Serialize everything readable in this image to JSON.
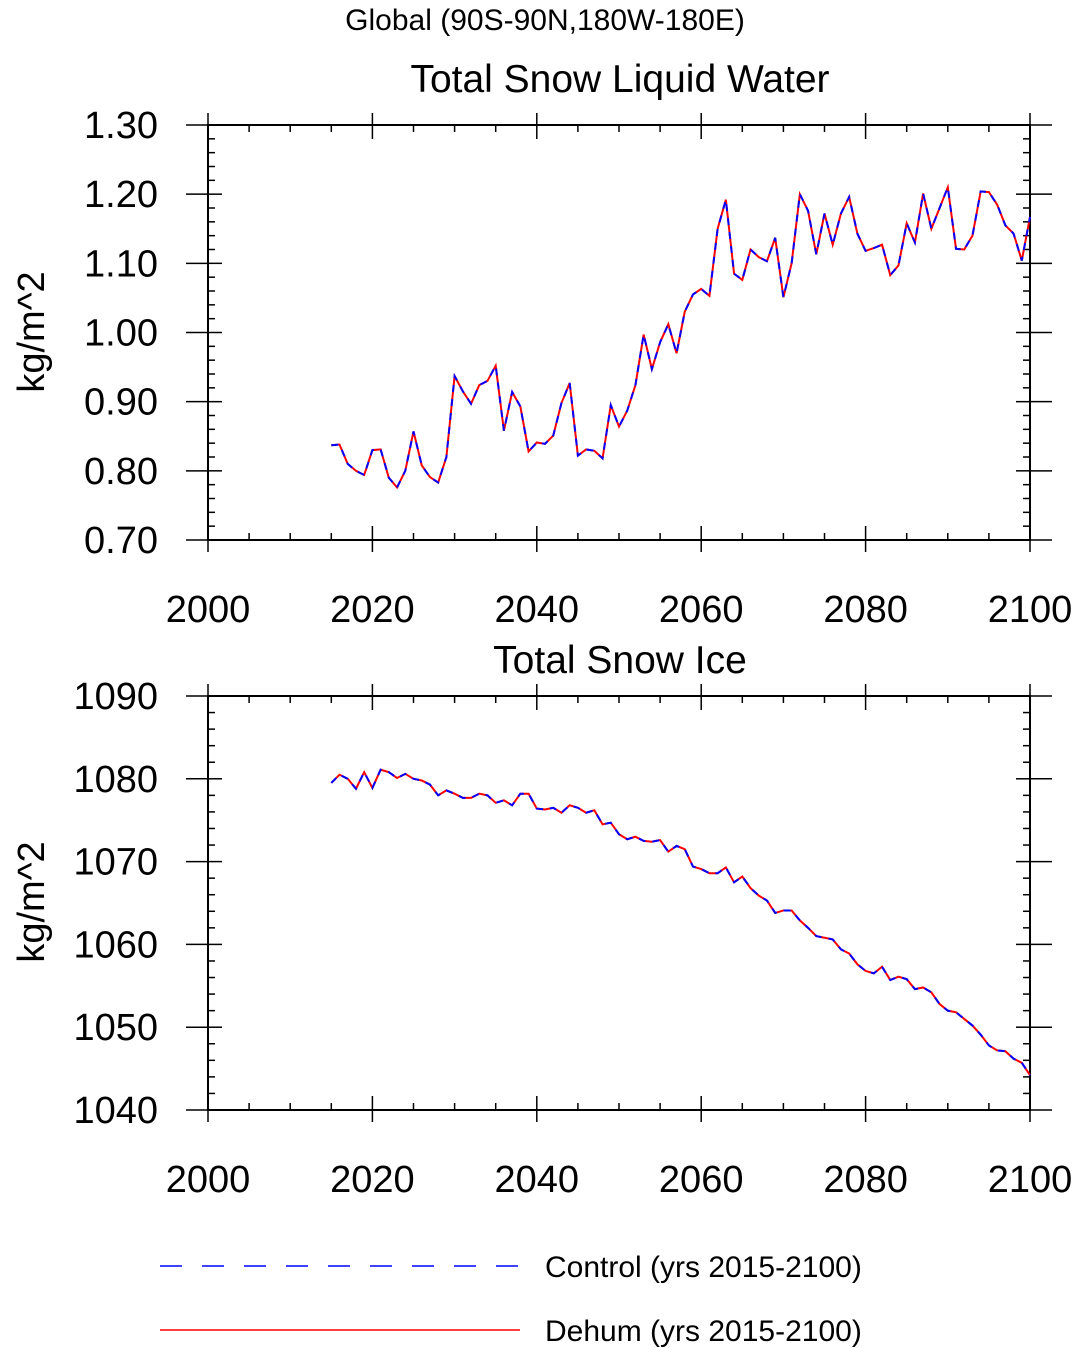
{
  "figure": {
    "supertitle": "Global (90S-90N,180W-180E)"
  },
  "legend": {
    "placement": "bottom",
    "entries": [
      {
        "label": "Control (yrs 2015-2100)",
        "color": "#0000ff",
        "dash": "dashed"
      },
      {
        "label": "Dehum (yrs 2015-2100)",
        "color": "#ff0000",
        "dash": "solid"
      }
    ]
  },
  "chart_data": [
    {
      "type": "line",
      "title": "Total Snow Liquid Water",
      "xlabel": "",
      "ylabel": "kg/m^2",
      "xlim": [
        2000,
        2100
      ],
      "ylim": [
        0.7,
        1.3
      ],
      "xticks": [
        2000,
        2020,
        2040,
        2060,
        2080,
        2100
      ],
      "xtick_labels": [
        "2000",
        "2020",
        "2040",
        "2060",
        "2080",
        "2100"
      ],
      "yticks": [
        0.7,
        0.8,
        0.9,
        1.0,
        1.1,
        1.2,
        1.3
      ],
      "ytick_labels": [
        "0.70",
        "0.80",
        "0.90",
        "1.00",
        "1.10",
        "1.20",
        "1.30"
      ],
      "grid": false,
      "x": [
        2015,
        2016,
        2017,
        2018,
        2019,
        2020,
        2021,
        2022,
        2023,
        2024,
        2025,
        2026,
        2027,
        2028,
        2029,
        2030,
        2031,
        2032,
        2033,
        2034,
        2035,
        2036,
        2037,
        2038,
        2039,
        2040,
        2041,
        2042,
        2043,
        2044,
        2045,
        2046,
        2047,
        2048,
        2049,
        2050,
        2051,
        2052,
        2053,
        2054,
        2055,
        2056,
        2057,
        2058,
        2059,
        2060,
        2061,
        2062,
        2063,
        2064,
        2065,
        2066,
        2067,
        2068,
        2069,
        2070,
        2071,
        2072,
        2073,
        2074,
        2075,
        2076,
        2077,
        2078,
        2079,
        2080,
        2081,
        2082,
        2083,
        2084,
        2085,
        2086,
        2087,
        2088,
        2089,
        2090,
        2091,
        2092,
        2093,
        2094,
        2095,
        2096,
        2097,
        2098,
        2099,
        2100
      ],
      "series": [
        {
          "name": "Control (yrs 2015-2100)",
          "color": "#0000ff",
          "values": [
            0.837,
            0.838,
            0.81,
            0.8,
            0.794,
            0.83,
            0.831,
            0.79,
            0.776,
            0.8,
            0.857,
            0.808,
            0.791,
            0.783,
            0.82,
            0.937,
            0.915,
            0.897,
            0.924,
            0.93,
            0.952,
            0.858,
            0.914,
            0.893,
            0.828,
            0.841,
            0.839,
            0.851,
            0.898,
            0.927,
            0.822,
            0.831,
            0.829,
            0.818,
            0.895,
            0.864,
            0.887,
            0.924,
            0.997,
            0.947,
            0.986,
            1.012,
            0.97,
            1.03,
            1.055,
            1.063,
            1.053,
            1.15,
            1.192,
            1.085,
            1.076,
            1.12,
            1.109,
            1.103,
            1.137,
            1.051,
            1.1,
            1.2,
            1.176,
            1.113,
            1.172,
            1.127,
            1.172,
            1.196,
            1.143,
            1.118,
            1.122,
            1.127,
            1.083,
            1.097,
            1.158,
            1.13,
            1.201,
            1.15,
            1.18,
            1.21,
            1.121,
            1.12,
            1.14,
            1.204,
            1.203,
            1.185,
            1.155,
            1.143,
            1.104,
            1.167
          ]
        },
        {
          "name": "Dehum (yrs 2015-2100)",
          "color": "#ff0000",
          "values": [
            0.837,
            0.838,
            0.81,
            0.8,
            0.794,
            0.83,
            0.831,
            0.79,
            0.776,
            0.8,
            0.857,
            0.808,
            0.791,
            0.783,
            0.82,
            0.937,
            0.915,
            0.897,
            0.924,
            0.93,
            0.952,
            0.858,
            0.914,
            0.893,
            0.828,
            0.841,
            0.839,
            0.851,
            0.898,
            0.927,
            0.822,
            0.831,
            0.829,
            0.818,
            0.895,
            0.864,
            0.887,
            0.924,
            0.997,
            0.947,
            0.986,
            1.012,
            0.97,
            1.03,
            1.055,
            1.063,
            1.053,
            1.15,
            1.192,
            1.085,
            1.076,
            1.12,
            1.109,
            1.103,
            1.137,
            1.051,
            1.1,
            1.2,
            1.176,
            1.113,
            1.172,
            1.127,
            1.172,
            1.196,
            1.143,
            1.118,
            1.122,
            1.127,
            1.083,
            1.097,
            1.158,
            1.13,
            1.201,
            1.15,
            1.18,
            1.21,
            1.121,
            1.12,
            1.14,
            1.204,
            1.203,
            1.185,
            1.155,
            1.143,
            1.104,
            1.167
          ]
        }
      ]
    },
    {
      "type": "line",
      "title": "Total Snow Ice",
      "xlabel": "",
      "ylabel": "kg/m^2",
      "xlim": [
        2000,
        2100
      ],
      "ylim": [
        1040,
        1090
      ],
      "xticks": [
        2000,
        2020,
        2040,
        2060,
        2080,
        2100
      ],
      "xtick_labels": [
        "2000",
        "2020",
        "2040",
        "2060",
        "2080",
        "2100"
      ],
      "yticks": [
        1040,
        1050,
        1060,
        1070,
        1080,
        1090
      ],
      "ytick_labels": [
        "1040",
        "1050",
        "1060",
        "1070",
        "1080",
        "1090"
      ],
      "grid": false,
      "x": [
        2015,
        2016,
        2017,
        2018,
        2019,
        2020,
        2021,
        2022,
        2023,
        2024,
        2025,
        2026,
        2027,
        2028,
        2029,
        2030,
        2031,
        2032,
        2033,
        2034,
        2035,
        2036,
        2037,
        2038,
        2039,
        2040,
        2041,
        2042,
        2043,
        2044,
        2045,
        2046,
        2047,
        2048,
        2049,
        2050,
        2051,
        2052,
        2053,
        2054,
        2055,
        2056,
        2057,
        2058,
        2059,
        2060,
        2061,
        2062,
        2063,
        2064,
        2065,
        2066,
        2067,
        2068,
        2069,
        2070,
        2071,
        2072,
        2073,
        2074,
        2075,
        2076,
        2077,
        2078,
        2079,
        2080,
        2081,
        2082,
        2083,
        2084,
        2085,
        2086,
        2087,
        2088,
        2089,
        2090,
        2091,
        2092,
        2093,
        2094,
        2095,
        2096,
        2097,
        2098,
        2099,
        2100
      ],
      "series": [
        {
          "name": "Control (yrs 2015-2100)",
          "color": "#0000ff",
          "values": [
            1079.5,
            1080.5,
            1080.0,
            1078.8,
            1080.8,
            1078.9,
            1081.1,
            1080.8,
            1080.1,
            1080.6,
            1080.0,
            1079.8,
            1079.3,
            1078.0,
            1078.6,
            1078.2,
            1077.7,
            1077.7,
            1078.2,
            1078.0,
            1077.1,
            1077.4,
            1076.8,
            1078.2,
            1078.2,
            1076.4,
            1076.3,
            1076.5,
            1075.9,
            1076.8,
            1076.5,
            1075.9,
            1076.2,
            1074.5,
            1074.7,
            1073.3,
            1072.7,
            1073.0,
            1072.5,
            1072.4,
            1072.6,
            1071.2,
            1071.9,
            1071.5,
            1069.4,
            1069.1,
            1068.6,
            1068.6,
            1069.3,
            1067.5,
            1068.2,
            1066.8,
            1065.9,
            1065.3,
            1063.8,
            1064.1,
            1064.1,
            1062.9,
            1062.0,
            1061.0,
            1060.8,
            1060.6,
            1059.4,
            1058.9,
            1057.6,
            1056.8,
            1056.5,
            1057.3,
            1055.7,
            1056.1,
            1055.8,
            1054.6,
            1054.8,
            1054.2,
            1052.8,
            1052.0,
            1051.8,
            1051.0,
            1050.2,
            1049.1,
            1047.8,
            1047.2,
            1047.1,
            1046.2,
            1045.7,
            1044.2
          ]
        },
        {
          "name": "Dehum (yrs 2015-2100)",
          "color": "#ff0000",
          "values": [
            1079.5,
            1080.5,
            1080.0,
            1078.8,
            1080.8,
            1078.9,
            1081.1,
            1080.8,
            1080.1,
            1080.6,
            1080.0,
            1079.8,
            1079.3,
            1078.0,
            1078.6,
            1078.2,
            1077.7,
            1077.7,
            1078.2,
            1078.0,
            1077.1,
            1077.4,
            1076.8,
            1078.2,
            1078.2,
            1076.4,
            1076.3,
            1076.5,
            1075.9,
            1076.8,
            1076.5,
            1075.9,
            1076.2,
            1074.5,
            1074.7,
            1073.3,
            1072.7,
            1073.0,
            1072.5,
            1072.4,
            1072.6,
            1071.2,
            1071.9,
            1071.5,
            1069.4,
            1069.1,
            1068.6,
            1068.6,
            1069.3,
            1067.5,
            1068.2,
            1066.8,
            1065.9,
            1065.3,
            1063.8,
            1064.1,
            1064.1,
            1062.9,
            1062.0,
            1061.0,
            1060.8,
            1060.6,
            1059.4,
            1058.9,
            1057.6,
            1056.8,
            1056.5,
            1057.3,
            1055.7,
            1056.1,
            1055.8,
            1054.6,
            1054.8,
            1054.2,
            1052.8,
            1052.0,
            1051.8,
            1051.0,
            1050.2,
            1049.1,
            1047.8,
            1047.2,
            1047.1,
            1046.2,
            1045.7,
            1044.2
          ]
        }
      ]
    }
  ]
}
